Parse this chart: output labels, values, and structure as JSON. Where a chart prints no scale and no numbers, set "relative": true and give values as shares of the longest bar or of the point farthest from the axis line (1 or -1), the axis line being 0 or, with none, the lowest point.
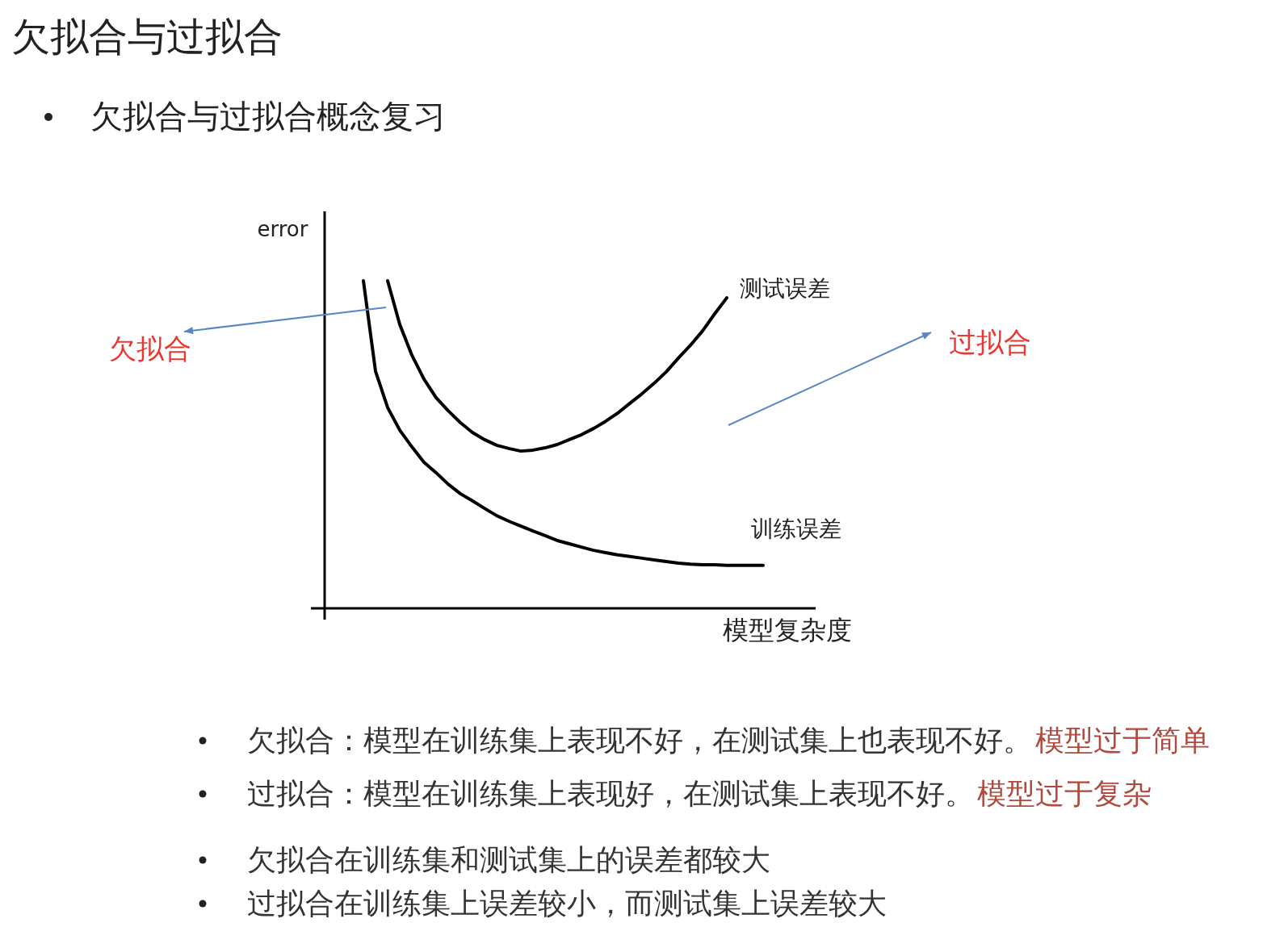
{
  "chart_data": {
    "type": "line",
    "title": "欠拟合与过拟合",
    "subtitle": "欠拟合与过拟合概念复习",
    "xlabel": "模型复杂度",
    "ylabel": "error",
    "relative": true,
    "categories": [
      null,
      null,
      null,
      null,
      null,
      null,
      null,
      null,
      null,
      null,
      null,
      null,
      null,
      null,
      null,
      null,
      null,
      null,
      null,
      null,
      null,
      null,
      null,
      null,
      null,
      null,
      null,
      null,
      null,
      null,
      null,
      null,
      null,
      null
    ],
    "series": [
      {
        "name": "测试误差",
        "color": "#000000",
        "values": [
          null,
          null,
          1.0,
          0.867,
          0.773,
          0.7,
          0.643,
          0.603,
          0.567,
          0.537,
          0.515,
          0.498,
          0.488,
          0.48,
          0.483,
          0.49,
          0.5,
          0.515,
          0.53,
          0.549,
          0.571,
          0.596,
          0.626,
          0.655,
          0.687,
          0.722,
          0.764,
          0.803,
          0.847,
          0.899,
          0.948,
          null,
          null,
          null
        ]
      },
      {
        "name": "训练误差",
        "color": "#000000",
        "values": [
          1.0,
          0.724,
          0.613,
          0.544,
          0.493,
          0.446,
          0.414,
          0.379,
          0.35,
          0.328,
          0.305,
          0.283,
          0.266,
          0.251,
          0.236,
          0.222,
          0.207,
          0.197,
          0.187,
          0.177,
          0.17,
          0.163,
          0.158,
          0.153,
          0.148,
          0.143,
          0.138,
          0.135,
          0.133,
          0.133,
          0.131,
          0.131,
          0.131,
          0.131
        ]
      }
    ],
    "annotations": [
      "欠拟合",
      "过拟合",
      "欠拟合：模型在训练集上表现不好，在测试集上也表现不好。",
      "模型过于简单",
      "过拟合：模型在训练集上表现好，在测试集上表现不好。",
      "模型过于复杂",
      "欠拟合在训练集和测试集上的误差都较大",
      "过拟合在训练集上误差较小，而测试集上误差较大"
    ]
  }
}
